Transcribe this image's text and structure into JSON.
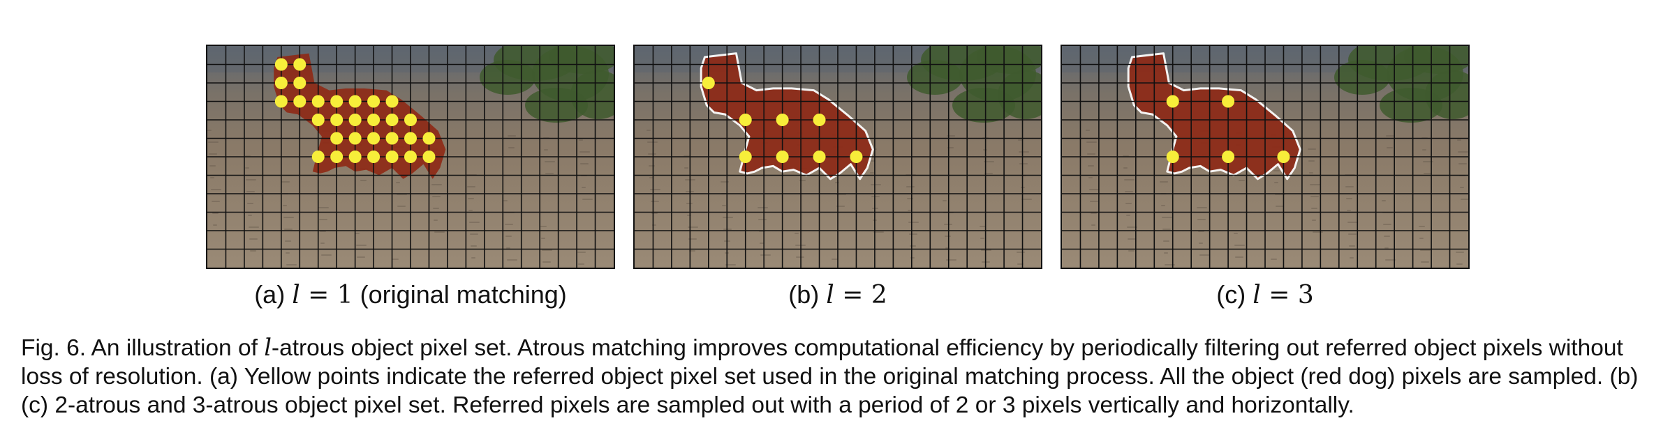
{
  "figure": {
    "panels": [
      {
        "id": "a",
        "prefix": "(a) ",
        "math_var": "l",
        "math_rest": " = 1",
        "suffix": " (original matching)",
        "period": 1
      },
      {
        "id": "b",
        "prefix": "(b) ",
        "math_var": "l",
        "math_rest": " = 2",
        "suffix": "",
        "period": 2
      },
      {
        "id": "c",
        "prefix": "(c) ",
        "math_var": "l",
        "math_rest": " = 3",
        "suffix": "",
        "period": 3
      }
    ],
    "colors": {
      "object_mask": "#8e2a17",
      "sampled_point": "#f7ee3a",
      "mask_outline": "#ffffff",
      "grid": "#111111",
      "ground": "#8a7a68",
      "fence": "#5e6670",
      "foliage": "#3f5a2e"
    }
  },
  "caption": {
    "part1": "Fig. 6. An illustration of ",
    "math_var": "l",
    "part2": "-atrous object pixel set. Atrous matching improves computational efficiency by periodically filtering out referred object pixels without loss of resolution. (a) Yellow points indicate the referred object pixel set used in the original matching process. All the object (red dog) pixels are sampled. (b) (c) 2-atrous and 3-atrous object pixel set. Referred pixels are sampled out with a period of 2 or 3 pixels vertically and horizontally."
  }
}
